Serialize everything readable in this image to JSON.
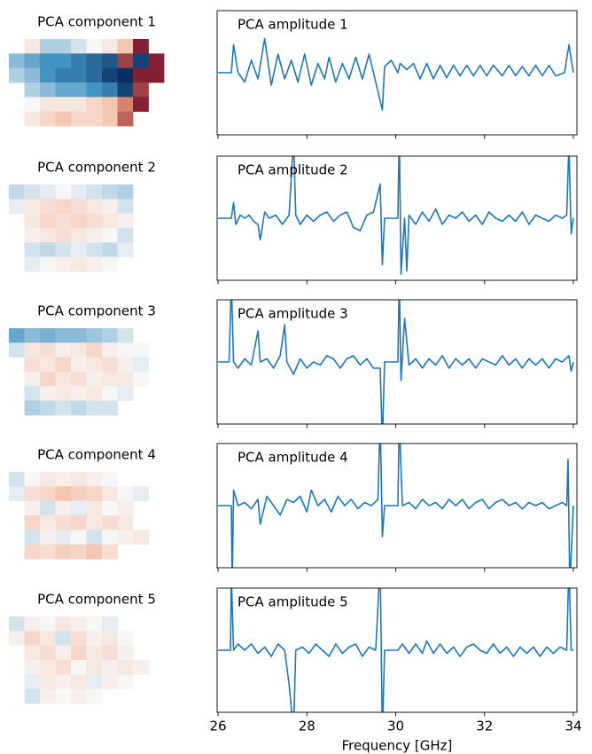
{
  "chart_data": [
    {
      "type": "heatmap",
      "title": "PCA component 1",
      "zlim": [
        -1,
        1
      ],
      "z": [
        [
          null,
          0.1,
          -0.2,
          -0.2,
          -0.1,
          0,
          0.1,
          0.3,
          0.9,
          null
        ],
        [
          -0.3,
          -0.4,
          -0.5,
          -0.5,
          -0.6,
          -0.7,
          -0.8,
          0.8,
          -0.9,
          0.9
        ],
        [
          -0.2,
          -0.3,
          -0.5,
          -0.6,
          -0.6,
          -0.7,
          -0.9,
          -1,
          0.9,
          0.9
        ],
        [
          null,
          -0.2,
          -0.3,
          -0.4,
          -0.4,
          -0.5,
          -0.6,
          -0.9,
          0.8,
          null
        ],
        [
          null,
          0,
          0.1,
          0.1,
          0.1,
          0.2,
          0.3,
          0.6,
          0.9,
          null
        ],
        [
          null,
          0.1,
          0.2,
          0.3,
          0.2,
          0.2,
          0.3,
          0.7,
          null,
          null
        ]
      ]
    },
    {
      "type": "heatmap",
      "title": "PCA component 2",
      "zlim": [
        -1,
        1
      ],
      "z": [
        [
          -0.15,
          -0.1,
          -0.05,
          0,
          -0.05,
          -0.1,
          -0.15,
          -0.2,
          null,
          null
        ],
        [
          -0.05,
          0.1,
          0.15,
          0.2,
          0.15,
          0.1,
          0.05,
          -0.1,
          null,
          null
        ],
        [
          null,
          0.1,
          0.2,
          0.15,
          0.2,
          0.15,
          0.1,
          0.05,
          null,
          null
        ],
        [
          null,
          0.05,
          0.1,
          0.15,
          0.1,
          0.05,
          0,
          -0.1,
          null,
          null
        ],
        [
          null,
          -0.1,
          -0.15,
          -0.1,
          -0.05,
          -0.1,
          -0.15,
          -0.05,
          null,
          null
        ],
        [
          null,
          -0.05,
          0,
          0.05,
          0.1,
          0.05,
          0,
          null,
          null,
          null
        ]
      ]
    },
    {
      "type": "heatmap",
      "title": "PCA component 3",
      "zlim": [
        -1,
        1
      ],
      "z": [
        [
          -0.4,
          -0.3,
          -0.35,
          -0.3,
          -0.3,
          -0.25,
          -0.2,
          -0.1,
          null,
          null
        ],
        [
          -0.1,
          0.1,
          0.15,
          0.05,
          0.1,
          0.2,
          0.05,
          0,
          0,
          null
        ],
        [
          null,
          0.15,
          0.1,
          0.2,
          0.05,
          0.1,
          0.15,
          0.05,
          -0.05,
          null
        ],
        [
          null,
          0.05,
          0.2,
          0.1,
          0.15,
          0.05,
          0.1,
          0.1,
          0,
          null
        ],
        [
          null,
          -0.1,
          0.05,
          0.1,
          0.05,
          0.1,
          0,
          -0.05,
          null,
          null
        ],
        [
          null,
          -0.2,
          -0.15,
          -0.1,
          -0.15,
          -0.1,
          -0.1,
          null,
          null,
          null
        ]
      ]
    },
    {
      "type": "heatmap",
      "title": "PCA component 4",
      "zlim": [
        -1,
        1
      ],
      "z": [
        [
          -0.1,
          0,
          0.1,
          0.05,
          0.1,
          0.05,
          0,
          null,
          null,
          null
        ],
        [
          -0.05,
          0.15,
          0.2,
          0.3,
          0.25,
          0.2,
          0.1,
          0,
          -0.05,
          null
        ],
        [
          null,
          0.05,
          -0.1,
          0.05,
          -0.05,
          0.1,
          0,
          0.05,
          null,
          null
        ],
        [
          null,
          0.2,
          0.1,
          0.15,
          0.2,
          0.1,
          0.15,
          0.1,
          null,
          null
        ],
        [
          null,
          -0.1,
          0.05,
          -0.05,
          0,
          -0.1,
          0,
          0.05,
          0.1,
          null
        ],
        [
          null,
          0.2,
          0.15,
          0.25,
          0.2,
          0.3,
          0.15,
          null,
          null,
          null
        ]
      ]
    },
    {
      "type": "heatmap",
      "title": "PCA component 5",
      "zlim": [
        -1,
        1
      ],
      "z": [
        [
          -0.1,
          0.05,
          0,
          0.1,
          0.05,
          0,
          -0.05,
          null,
          null,
          null
        ],
        [
          0.05,
          0.2,
          0.1,
          -0.1,
          0.15,
          0.05,
          0.1,
          0,
          null,
          null
        ],
        [
          null,
          0.1,
          0.15,
          0.05,
          0.2,
          0.1,
          0.15,
          0.05,
          null,
          null
        ],
        [
          null,
          0.05,
          0.1,
          0.15,
          0,
          0.1,
          0.05,
          0.1,
          0.05,
          null
        ],
        [
          null,
          -0.05,
          0.1,
          0.05,
          0.1,
          -0.05,
          0.05,
          0,
          null,
          null
        ],
        [
          null,
          -0.1,
          0.05,
          0,
          0.05,
          0,
          null,
          null,
          null,
          null
        ]
      ]
    },
    {
      "type": "line",
      "annotation": "PCA amplitude 1",
      "color": "#1f77b4",
      "xlim": [
        25.98,
        34.08
      ],
      "ylim": [
        -1,
        1
      ],
      "xticks": [
        26,
        28,
        30,
        32,
        34
      ],
      "x": [
        26.0,
        26.3,
        26.35,
        26.45,
        26.6,
        26.75,
        26.9,
        27.05,
        27.2,
        27.35,
        27.5,
        27.65,
        27.8,
        27.95,
        28.1,
        28.25,
        28.4,
        28.5,
        28.65,
        28.8,
        28.95,
        29.1,
        29.25,
        29.4,
        29.55,
        29.7,
        29.75,
        29.9,
        30.05,
        30.1,
        30.25,
        30.4,
        30.55,
        30.7,
        30.85,
        31.0,
        31.15,
        31.3,
        31.45,
        31.6,
        31.75,
        31.9,
        32.05,
        32.2,
        32.4,
        32.55,
        32.7,
        32.85,
        33.0,
        33.15,
        33.3,
        33.45,
        33.6,
        33.8,
        33.9,
        34.0
      ],
      "values": [
        0,
        0,
        0.45,
        0,
        -0.15,
        0.2,
        -0.1,
        0.55,
        -0.2,
        0.3,
        -0.1,
        0.2,
        -0.15,
        0.3,
        -0.2,
        0.15,
        -0.1,
        0.25,
        -0.15,
        0.15,
        -0.1,
        0.25,
        -0.1,
        0.3,
        -0.15,
        -0.6,
        0.1,
        0.2,
        0,
        0.15,
        0.05,
        0.15,
        -0.1,
        0.15,
        -0.1,
        0.12,
        -0.08,
        0.12,
        -0.05,
        0.12,
        -0.05,
        0.12,
        -0.05,
        0.12,
        -0.05,
        0.12,
        -0.05,
        0.1,
        -0.05,
        0.12,
        -0.05,
        0.12,
        -0.05,
        0,
        0.45,
        0
      ]
    },
    {
      "type": "line",
      "annotation": "PCA amplitude 2",
      "color": "#1f77b4",
      "xlim": [
        25.98,
        34.08
      ],
      "ylim": [
        -1,
        1
      ],
      "xticks": [
        26,
        28,
        30,
        32,
        34
      ],
      "x": [
        26.0,
        26.3,
        26.35,
        26.4,
        26.5,
        26.6,
        26.7,
        26.8,
        26.9,
        26.95,
        27.05,
        27.15,
        27.3,
        27.45,
        27.6,
        27.7,
        27.75,
        27.85,
        28.0,
        28.15,
        28.3,
        28.45,
        28.6,
        28.75,
        28.9,
        29.05,
        29.2,
        29.35,
        29.5,
        29.65,
        29.7,
        29.75,
        30.05,
        30.08,
        30.12,
        30.2,
        30.25,
        30.3,
        30.45,
        30.6,
        30.75,
        30.9,
        31.05,
        31.2,
        31.35,
        31.5,
        31.65,
        31.8,
        31.95,
        32.1,
        32.25,
        32.4,
        32.55,
        32.7,
        32.85,
        33.0,
        33.15,
        33.3,
        33.45,
        33.6,
        33.75,
        33.85,
        33.9,
        33.95,
        34.0
      ],
      "values": [
        0,
        0,
        0.25,
        -0.1,
        0.05,
        0,
        0.05,
        -0.05,
        -0.1,
        -0.35,
        0.1,
        0,
        0.05,
        -0.1,
        0.05,
        1.3,
        0.05,
        -0.1,
        0.05,
        -0.05,
        0.05,
        0.1,
        -0.05,
        0.05,
        0.1,
        -0.15,
        -0.2,
        0.05,
        0.1,
        0.55,
        -0.75,
        0,
        0,
        1.5,
        -0.9,
        0,
        -0.85,
        0.05,
        -0.1,
        0.1,
        -0.05,
        0.15,
        -0.1,
        0.05,
        0,
        0.1,
        -0.05,
        0.05,
        -0.1,
        0.1,
        0,
        -0.05,
        0.05,
        -0.05,
        0.1,
        -0.1,
        0.05,
        0,
        -0.05,
        0.05,
        0,
        0.05,
        1.2,
        -0.25,
        0
      ]
    },
    {
      "type": "line",
      "annotation": "PCA amplitude 3",
      "color": "#1f77b4",
      "xlim": [
        25.98,
        34.08
      ],
      "ylim": [
        -1,
        1
      ],
      "xticks": [
        26,
        28,
        30,
        32,
        34
      ],
      "x": [
        26.0,
        26.25,
        26.3,
        26.35,
        26.45,
        26.6,
        26.75,
        26.9,
        26.95,
        27.1,
        27.25,
        27.4,
        27.5,
        27.55,
        27.7,
        27.85,
        28.0,
        28.15,
        28.3,
        28.45,
        28.6,
        28.75,
        28.9,
        29.05,
        29.2,
        29.35,
        29.5,
        29.65,
        29.7,
        29.75,
        30.05,
        30.08,
        30.12,
        30.2,
        30.3,
        30.45,
        30.6,
        30.75,
        30.9,
        31.05,
        31.2,
        31.35,
        31.5,
        31.65,
        31.8,
        31.95,
        32.1,
        32.25,
        32.4,
        32.55,
        32.7,
        32.85,
        33.0,
        33.15,
        33.3,
        33.45,
        33.6,
        33.75,
        33.9,
        33.95,
        34.0
      ],
      "values": [
        0,
        0,
        1.3,
        0,
        -0.1,
        0.05,
        -0.05,
        0.5,
        0,
        0.05,
        -0.1,
        0.1,
        0.6,
        0,
        -0.2,
        0.05,
        -0.1,
        0,
        -0.05,
        0.1,
        0.05,
        -0.1,
        0.05,
        0.1,
        -0.05,
        0.05,
        -0.1,
        -0.1,
        -1.3,
        0,
        0,
        1.4,
        -0.3,
        0.7,
        -0.05,
        0.05,
        -0.1,
        0.05,
        -0.05,
        0.1,
        -0.1,
        0.05,
        -0.05,
        0.05,
        -0.1,
        0.05,
        0,
        -0.05,
        0.1,
        -0.05,
        0.05,
        -0.1,
        0.05,
        -0.05,
        0.05,
        -0.1,
        0.05,
        0,
        0.1,
        -0.15,
        0
      ]
    },
    {
      "type": "line",
      "annotation": "PCA amplitude 4",
      "color": "#1f77b4",
      "xlim": [
        25.98,
        34.08
      ],
      "ylim": [
        -1,
        1
      ],
      "xticks": [
        26,
        28,
        30,
        32,
        34
      ],
      "x": [
        26.0,
        26.3,
        26.32,
        26.35,
        26.45,
        26.6,
        26.75,
        26.9,
        26.95,
        27.1,
        27.25,
        27.4,
        27.55,
        27.7,
        27.85,
        28.0,
        28.1,
        28.25,
        28.4,
        28.55,
        28.7,
        28.85,
        29.0,
        29.15,
        29.3,
        29.45,
        29.6,
        29.65,
        29.7,
        29.75,
        30.05,
        30.08,
        30.15,
        30.3,
        30.45,
        30.6,
        30.75,
        30.9,
        31.05,
        31.2,
        31.35,
        31.5,
        31.65,
        31.8,
        31.95,
        32.1,
        32.25,
        32.4,
        32.55,
        32.7,
        32.85,
        33.0,
        33.15,
        33.3,
        33.45,
        33.6,
        33.75,
        33.85,
        33.88,
        33.92,
        34.0
      ],
      "values": [
        0,
        0,
        -1.3,
        0.25,
        0,
        0.05,
        -0.05,
        0.1,
        -0.3,
        0.15,
        0,
        -0.15,
        0.1,
        0.05,
        0.15,
        -0.1,
        0.25,
        0,
        0.1,
        -0.1,
        0.15,
        0,
        0.1,
        -0.05,
        0.05,
        0,
        0.1,
        1.4,
        -0.5,
        0,
        0,
        1.4,
        0,
        0.05,
        -0.05,
        0.1,
        0,
        0.05,
        -0.05,
        0.1,
        0,
        0.1,
        -0.05,
        0.05,
        0.1,
        -0.05,
        0.05,
        0.1,
        0,
        0.05,
        -0.05,
        0.05,
        0,
        0.05,
        -0.05,
        0,
        0.05,
        0,
        0.75,
        -1.3,
        0
      ]
    },
    {
      "type": "line",
      "annotation": "PCA amplitude 5",
      "color": "#1f77b4",
      "xlim": [
        25.98,
        34.08
      ],
      "ylim": [
        -1,
        1
      ],
      "xticks": [
        26,
        28,
        30,
        32,
        34
      ],
      "xlabel": "Frequency [GHz]",
      "x": [
        26.0,
        26.28,
        26.3,
        26.35,
        26.45,
        26.6,
        26.75,
        26.9,
        27.05,
        27.2,
        27.35,
        27.5,
        27.6,
        27.7,
        27.75,
        27.9,
        28.05,
        28.2,
        28.35,
        28.5,
        28.65,
        28.8,
        28.95,
        29.1,
        29.25,
        29.4,
        29.55,
        29.65,
        29.7,
        29.75,
        30.05,
        30.15,
        30.3,
        30.45,
        30.6,
        30.7,
        30.85,
        31.0,
        31.15,
        31.3,
        31.45,
        31.6,
        31.75,
        31.9,
        32.05,
        32.2,
        32.35,
        32.5,
        32.65,
        32.8,
        32.95,
        33.1,
        33.25,
        33.4,
        33.55,
        33.7,
        33.85,
        33.9,
        33.95,
        34.0
      ],
      "values": [
        0,
        0,
        1.2,
        0,
        0.1,
        0,
        0.1,
        -0.05,
        0.05,
        -0.1,
        0.1,
        0,
        -0.55,
        -1.3,
        0,
        0.05,
        -0.05,
        0.1,
        0,
        -0.1,
        0.1,
        -0.05,
        0.05,
        0.1,
        -0.1,
        0.05,
        0,
        1.4,
        -1.4,
        0,
        0,
        0.1,
        -0.05,
        0.1,
        -0.05,
        0.15,
        -0.05,
        0.1,
        -0.05,
        0.05,
        -0.1,
        0.05,
        0.1,
        0,
        -0.05,
        0.1,
        -0.05,
        0.05,
        -0.1,
        0.05,
        -0.05,
        0.05,
        -0.1,
        0.05,
        -0.05,
        0.05,
        0,
        1.4,
        0,
        0
      ]
    }
  ]
}
